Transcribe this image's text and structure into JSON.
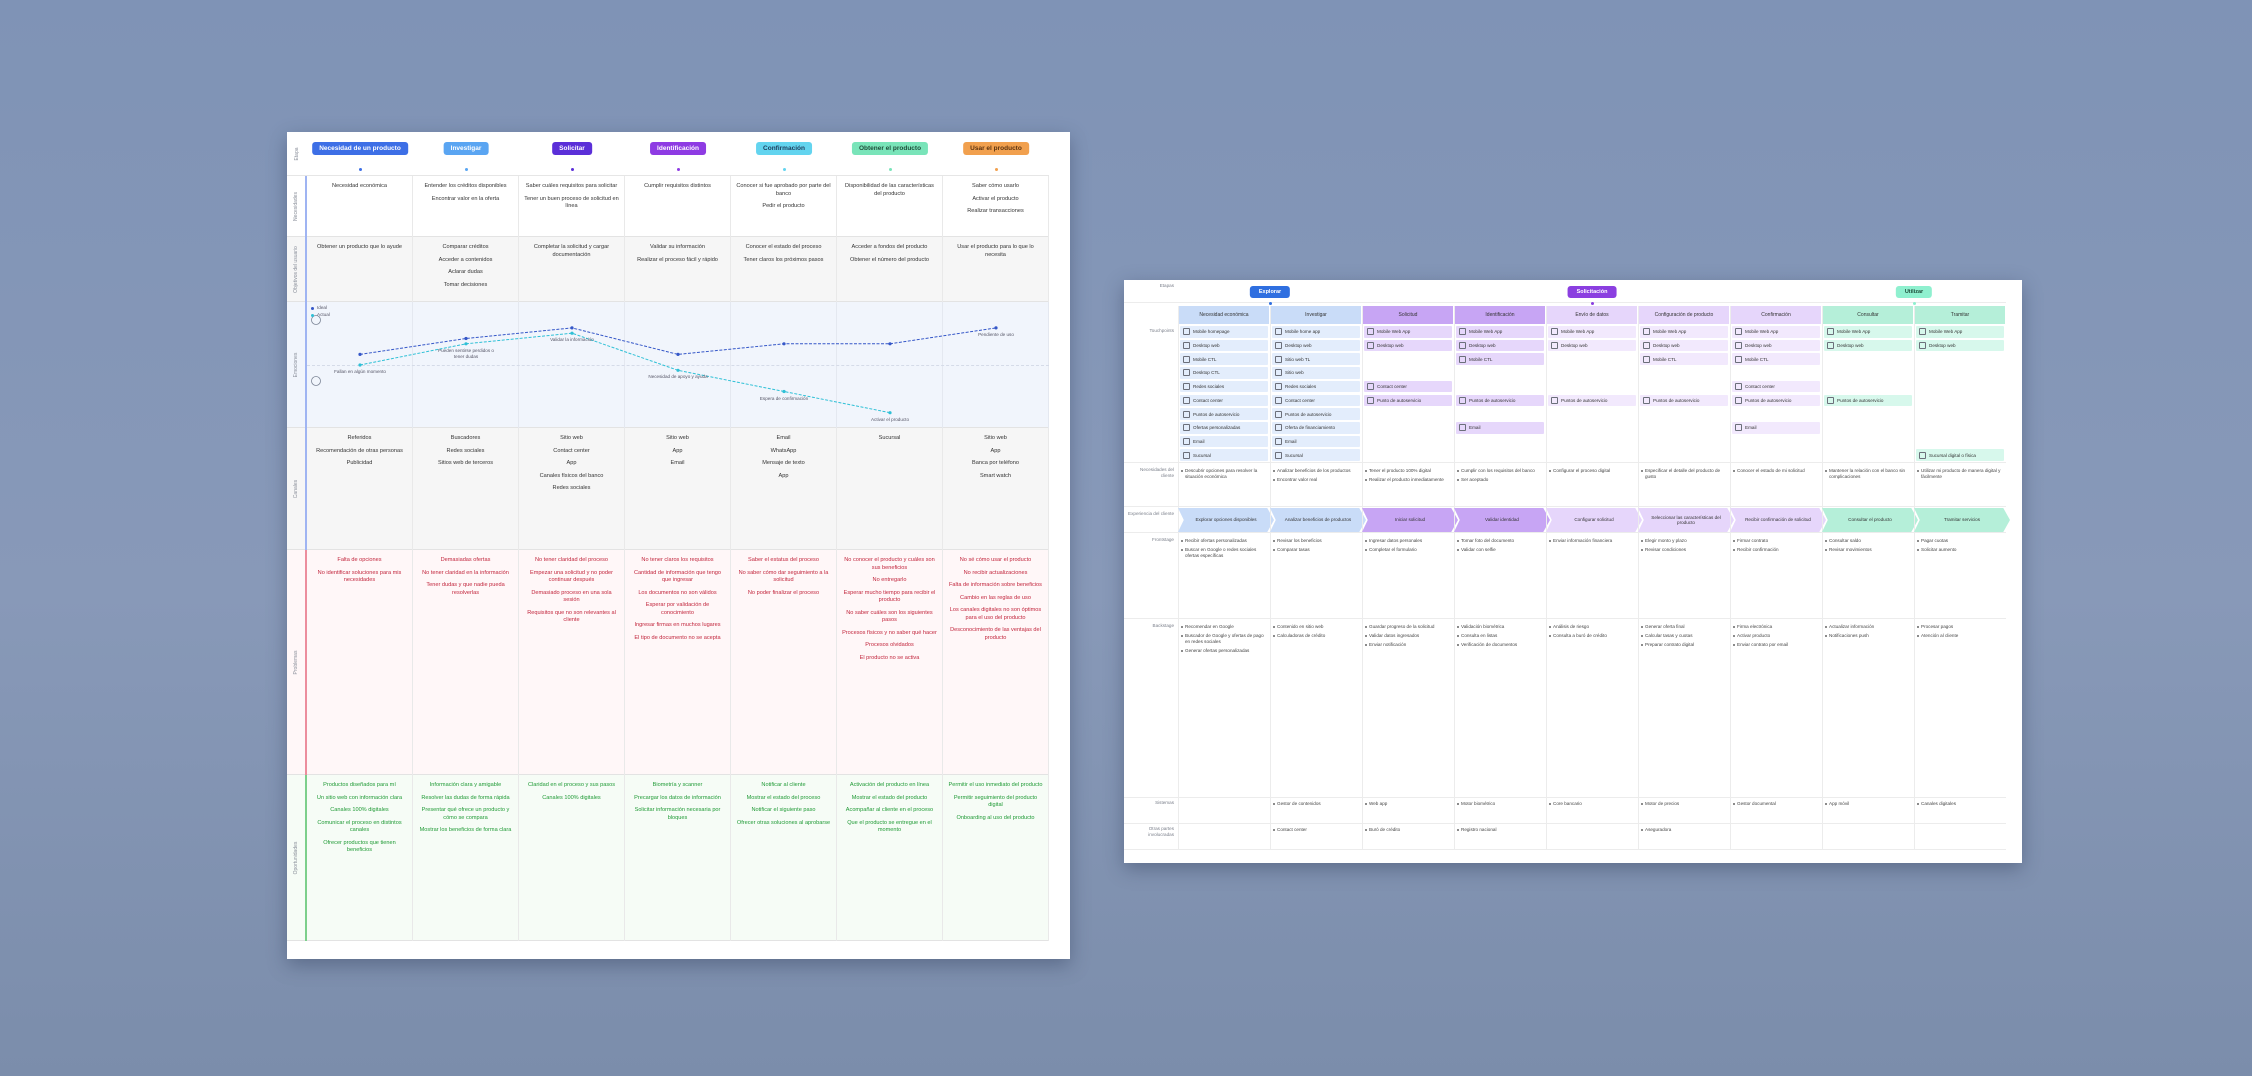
{
  "board1": {
    "stage_label": "Etapa",
    "stages": [
      {
        "name": "Necesidad de un producto",
        "color": "#3d6fe6",
        "text_color": "#ffffff"
      },
      {
        "name": "Investigar",
        "color": "#5aa5f2",
        "text_color": "#ffffff"
      },
      {
        "name": "Solicitar",
        "color": "#5b2fd8",
        "text_color": "#ffffff"
      },
      {
        "name": "Identificación",
        "color": "#8e3be3",
        "text_color": "#ffffff"
      },
      {
        "name": "Confirmación",
        "color": "#63d4ef",
        "text_color": "#1c3b5a"
      },
      {
        "name": "Obtener el producto",
        "color": "#79e4b9",
        "text_color": "#1f4d3a"
      },
      {
        "name": "Usar el producto",
        "color": "#f1a04e",
        "text_color": "#5a3210"
      }
    ],
    "rows": [
      {
        "label": "Necesidades",
        "bg": "#ffffff",
        "accent": "#9fb4f2",
        "color": "#333333",
        "cells": [
          [
            "Necesidad económica"
          ],
          [
            "Entender los créditos disponibles",
            "Encontrar valor en la oferta"
          ],
          [
            "Saber cuáles requisitos para solicitar",
            "Tener un buen proceso de solicitud en línea"
          ],
          [
            "Cumplir requisitos distintos"
          ],
          [
            "Conocer si fue aprobado por parte del banco",
            "Pedir el producto"
          ],
          [
            "Disponibilidad de las características del producto"
          ],
          [
            "Saber cómo usarlo",
            "Activar el producto",
            "Realizar transacciones"
          ]
        ]
      },
      {
        "label": "Objetivos del usuario",
        "bg": "#f6f6f6",
        "accent": "#9fb4f2",
        "color": "#333333",
        "cells": [
          [
            "Obtener un producto que lo ayude"
          ],
          [
            "Comparar créditos",
            "Acceder a contenidos",
            "Aclarar dudas",
            "Tomar decisiones"
          ],
          [
            "Completar la solicitud y cargar documentación"
          ],
          [
            "Validar su información",
            "Realizar el proceso fácil y rápido"
          ],
          [
            "Conocer el estado del proceso",
            "Tener claros los próximos pasos"
          ],
          [
            "Acceder a fondos del producto",
            "Obtener el número del producto"
          ],
          [
            "Usar el producto para lo que lo necesita"
          ]
        ]
      },
      {
        "label": "Emociones",
        "type": "line",
        "bg": "#f1f5fc",
        "accent": "#9fb4f2",
        "ylim": [
          0,
          10
        ],
        "series": [
          {
            "name": "Ideal",
            "color": "#3557c8",
            "values": [
              6,
              7.5,
              8.5,
              6,
              7,
              7,
              8.5
            ]
          },
          {
            "name": "Actual",
            "color": "#2fc0d6",
            "values": [
              5,
              7,
              8,
              4.5,
              2.5,
              0.5,
              null
            ]
          }
        ],
        "annotations": [
          {
            "text": "Fallan en algún momento",
            "series": 1,
            "index": 0
          },
          {
            "text": "Pueden sentirse perdidos o tener dudas",
            "series": 1,
            "index": 1
          },
          {
            "text": "Validar la información",
            "series": 1,
            "index": 2
          },
          {
            "text": "Necesidad de apoyo y ayuda",
            "series": 1,
            "index": 3
          },
          {
            "text": "Espera de confirmación",
            "series": 1,
            "index": 4
          },
          {
            "text": "Activar el producto",
            "series": 1,
            "index": 5
          },
          {
            "text": "Pendiente de uso",
            "series": 0,
            "index": 6
          }
        ]
      },
      {
        "label": "Canales",
        "bg": "#f6f6f6",
        "accent": "#9fb4f2",
        "color": "#333333",
        "cells": [
          [
            "Referidos",
            "Recomendación de otras personas",
            "Publicidad"
          ],
          [
            "Buscadores",
            "Redes sociales",
            "Sitios web de terceros"
          ],
          [
            "Sitio web",
            "Contact center",
            "App",
            "Canales físicos del banco",
            "Redes sociales"
          ],
          [
            "Sitio web",
            "App",
            "Email"
          ],
          [
            "Email",
            "WhatsApp",
            "Mensaje de texto",
            "App"
          ],
          [
            "Sucursal"
          ],
          [
            "Sitio web",
            "App",
            "Banca por teléfono",
            "Smart watch"
          ]
        ]
      },
      {
        "label": "Problemas",
        "bg": "#fff7f8",
        "accent": "#ec8d9d",
        "color": "#c2253c",
        "cells": [
          [
            "Falta de opciones",
            "No identificar soluciones para mis necesidades"
          ],
          [
            "Demasiadas ofertas",
            "No tener claridad en la información",
            "Tener dudas y que nadie pueda resolverlas"
          ],
          [
            "No tener claridad del proceso",
            "Empezar una solicitud y no poder continuar después",
            "Demasiado proceso en una sola sesión",
            "Requisitos que no son relevantes al cliente"
          ],
          [
            "No tener claros los requisitos",
            "Cantidad de información que tengo que ingresar",
            "Los documentos no son válidos",
            "Esperar por validación de conocimiento",
            "Ingresar firmas en muchos lugares",
            "El tipo de documento no se acepta"
          ],
          [
            "Saber el estatus del proceso",
            "No saber cómo dar seguimiento a la solicitud",
            "No poder finalizar el proceso"
          ],
          [
            "No conocer el producto y cuáles son sus beneficios",
            "No entregarlo",
            "Esperar mucho tiempo para recibir el producto",
            "No saber cuáles son los siguientes pasos",
            "Procesos físicos y no saber qué hacer",
            "Procesos olvidados",
            "El producto no se activa"
          ],
          [
            "No sé cómo usar el producto",
            "No recibir actualizaciones",
            "Falta de información sobre beneficios",
            "Cambio en las reglas de uso",
            "Los canales digitales no son óptimos para el uso del producto",
            "Desconocimiento de las ventajas del producto"
          ]
        ]
      },
      {
        "label": "Oportunidades",
        "bg": "#f6fcf6",
        "accent": "#7ccf8b",
        "color": "#1f9a35",
        "cells": [
          [
            "Productos diseñados para mí",
            "Un sitio web con información clara",
            "Canales 100% digitales",
            "Comunicar el proceso en distintos canales",
            "Ofrecer productos que tienen beneficios"
          ],
          [
            "Información clara y amigable",
            "Resolver las dudas de forma rápida",
            "Presentar qué ofrece un producto y cómo se compara",
            "Mostrar los beneficios de forma clara"
          ],
          [
            "Claridad en el proceso y sus pasos",
            "Canales 100% digitales"
          ],
          [
            "Biometría y scanner",
            "Precargar los datos de información",
            "Solicitar información necesaria por bloques"
          ],
          [
            "Notificar al cliente",
            "Mostrar el estado del proceso",
            "Notificar el siguiente paso",
            "Ofrecer otras soluciones al aprobarse"
          ],
          [
            "Activación del producto en línea",
            "Mostrar el estado del producto",
            "Acompañar al cliente en el proceso",
            "Que el producto se entregue en el momento"
          ],
          [
            "Permitir el uso inmediato del producto",
            "Permitir seguimiento del producto digital",
            "Onboarding al uso del producto"
          ]
        ]
      }
    ]
  },
  "board2": {
    "row_labels": [
      "Etapas",
      "Touchpoints",
      "Necesidades del cliente",
      "Experiencia del cliente",
      "Frontstage",
      "Backstage",
      "Sistemas",
      "Otras partes involucradas"
    ],
    "phases": [
      {
        "name": "Explorar",
        "color": "#2f6fe0",
        "text_color": "#ffffff",
        "steps": [
          {
            "name": "Necesidad económica",
            "color": "#c9dcf8",
            "tint": "#e3edfc",
            "touchpoints": [
              "Mobile homepage",
              "Desktop web",
              "Mobile CTL",
              "Desktop CTL",
              "Redes sociales",
              "Contact center",
              "Puntos de autoservicio",
              "Ofertas personalizadas",
              "Email",
              "Sucursal"
            ],
            "needs": [
              "Descubrir opciones para resolver la situación económica"
            ],
            "journey": "Explorar opciones disponibles",
            "frontstage": [
              "Recibir ofertas personalizadas",
              "Buscar en Google o redes sociales ofertas específicas"
            ],
            "backstage": [
              "Recomendar en Google",
              "Buscador de Google y ofertas de pago en redes sociales",
              "Generar ofertas personalizadas"
            ],
            "systems": [],
            "others": []
          },
          {
            "name": "Investigar",
            "color": "#c9dcf8",
            "tint": "#e3edfc",
            "touchpoints": [
              "Mobile home app",
              "Desktop web",
              "Sitio web TL",
              "Sitio web",
              "Redes sociales",
              "Contact center",
              "Puntos de autoservicio",
              "Oferta de financiamiento",
              "Email",
              "Sucursal"
            ],
            "needs": [
              "Analizar beneficios de los productos",
              "Encontrar valor real"
            ],
            "journey": "Analizar beneficios de productos",
            "frontstage": [
              "Revisar los beneficios",
              "Comparar tasas"
            ],
            "backstage": [
              "Contenido en sitio web",
              "Calculadoras de crédito"
            ],
            "systems": [
              "Gestor de contenidos"
            ],
            "others": [
              "Contact center"
            ]
          }
        ]
      },
      {
        "name": "Solicitación",
        "color": "#8b3fe0",
        "text_color": "#ffffff",
        "steps": [
          {
            "name": "Solicitud",
            "color": "#c7a5f4",
            "tint": "#e6d7fb",
            "touchpoints": [
              "Mobile Web App",
              "Desktop web",
              null,
              null,
              "Contact center",
              "Punto de autoservicio",
              null,
              null,
              null,
              null
            ],
            "needs": [
              "Tener el producto 100% digital",
              "Realizar el producto inmediatamente"
            ],
            "journey": "Iniciar solicitud",
            "frontstage": [
              "Ingresar datos personales",
              "Completar el formulario"
            ],
            "backstage": [
              "Guardar progreso de la solicitud",
              "Validar datos ingresados",
              "Enviar notificación"
            ],
            "systems": [
              "Web app"
            ],
            "others": [
              "Buró de crédito"
            ]
          },
          {
            "name": "Identificación",
            "color": "#c7a5f4",
            "tint": "#e6d7fb",
            "touchpoints": [
              "Mobile Web App",
              "Desktop web",
              "Mobile CTL",
              null,
              null,
              "Puntos de autoservicio",
              null,
              "Email",
              null,
              null
            ],
            "needs": [
              "Cumplir con los requisitos del banco",
              "Ser aceptado"
            ],
            "journey": "Validar identidad",
            "frontstage": [
              "Tomar foto del documento",
              "Validar con selfie"
            ],
            "backstage": [
              "Validación biométrica",
              "Consulta en listas",
              "Verificación de documentos"
            ],
            "systems": [
              "Motor biométrico"
            ],
            "others": [
              "Registro nacional"
            ]
          },
          {
            "name": "Envío de datos",
            "color": "#e6d6fb",
            "tint": "#f2e9fd",
            "touchpoints": [
              "Mobile Web App",
              "Desktop web",
              null,
              null,
              null,
              "Puntos de autoservicio",
              null,
              null,
              null,
              null
            ],
            "needs": [
              "Configurar el proceso digital"
            ],
            "journey": "Configurar solicitud",
            "frontstage": [
              "Enviar información financiera"
            ],
            "backstage": [
              "Análisis de riesgo",
              "Consulta a buró de crédito"
            ],
            "systems": [
              "Core bancario"
            ],
            "others": []
          },
          {
            "name": "Configuración de producto",
            "color": "#e6d6fb",
            "tint": "#f2e9fd",
            "touchpoints": [
              "Mobile Web App",
              "Desktop web",
              "Mobile CTL",
              null,
              null,
              "Puntos de autoservicio",
              null,
              null,
              null,
              null
            ],
            "needs": [
              "Especificar el detalle del producto de gusto"
            ],
            "journey": "Seleccionar las características del producto",
            "frontstage": [
              "Elegir monto y plazo",
              "Revisar condiciones"
            ],
            "backstage": [
              "Generar oferta final",
              "Calcular tasas y cuotas",
              "Preparar contrato digital"
            ],
            "systems": [
              "Motor de precios"
            ],
            "others": [
              "Aseguradora"
            ]
          },
          {
            "name": "Confirmación",
            "color": "#e6d6fb",
            "tint": "#f2e9fd",
            "touchpoints": [
              "Mobile Web App",
              "Desktop web",
              "Mobile CTL",
              null,
              "Contact center",
              "Puntos de autoservicio",
              null,
              "Email",
              null,
              null
            ],
            "needs": [
              "Conocer el estado de mi solicitud"
            ],
            "journey": "Recibir confirmación de solicitud",
            "frontstage": [
              "Firmar contrato",
              "Recibir confirmación"
            ],
            "backstage": [
              "Firma electrónica",
              "Activar producto",
              "Enviar contrato por email"
            ],
            "systems": [
              "Gestor documental"
            ],
            "others": []
          }
        ]
      },
      {
        "name": "Utilizar",
        "color": "#8ff0cf",
        "text_color": "#1f4d3a",
        "steps": [
          {
            "name": "Consultar",
            "color": "#b5efd9",
            "tint": "#d7f8ec",
            "touchpoints": [
              "Mobile Web App",
              "Desktop web",
              null,
              null,
              null,
              "Puntos de autoservicio",
              null,
              null,
              null,
              null
            ],
            "needs": [
              "Mantener la relación con el banco sin complicaciones"
            ],
            "journey": "Consultar el producto",
            "frontstage": [
              "Consultar saldo",
              "Revisar movimientos"
            ],
            "backstage": [
              "Actualizar información",
              "Notificaciones push"
            ],
            "systems": [
              "App móvil"
            ],
            "others": []
          },
          {
            "name": "Tramitar",
            "color": "#b5efd9",
            "tint": "#d7f8ec",
            "touchpoints": [
              "Mobile Web App",
              "Desktop web",
              null,
              null,
              null,
              null,
              null,
              null,
              null,
              "Sucursal digital o física"
            ],
            "needs": [
              "Utilizar mi producto de manera digital y fácilmente"
            ],
            "journey": "Tramitar servicios",
            "frontstage": [
              "Pagar cuotas",
              "Solicitar aumento"
            ],
            "backstage": [
              "Procesar pagos",
              "Atención al cliente"
            ],
            "systems": [
              "Canales digitales"
            ],
            "others": []
          }
        ]
      }
    ]
  }
}
